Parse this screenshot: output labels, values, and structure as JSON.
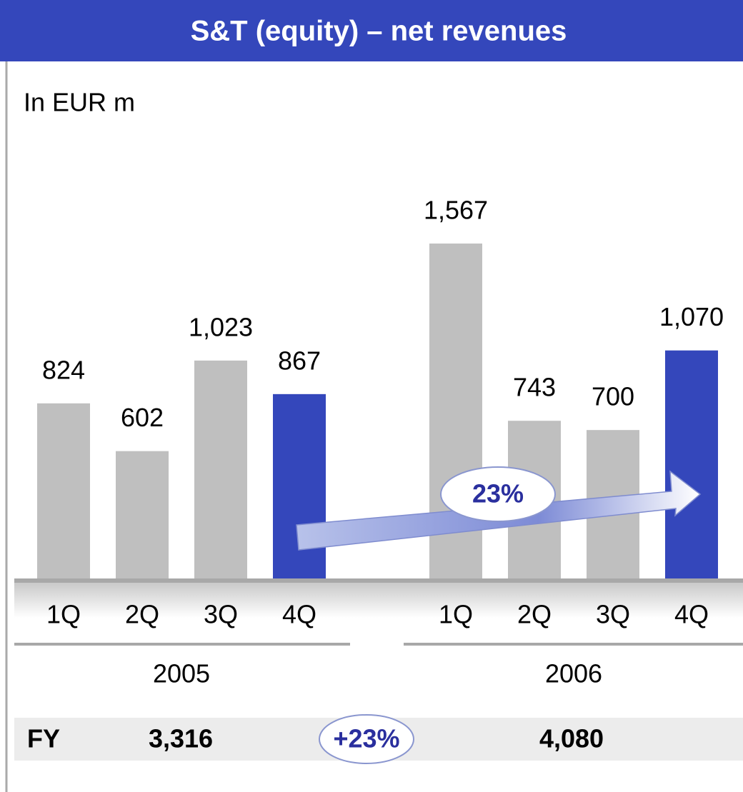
{
  "chart_data": {
    "type": "bar",
    "title": "S&T (equity) – net revenues",
    "subtitle": "In EUR m",
    "groups": [
      {
        "name": "2005",
        "categories": [
          "1Q",
          "2Q",
          "3Q",
          "4Q"
        ],
        "values": [
          824,
          602,
          1023,
          867
        ],
        "value_labels": [
          "824",
          "602",
          "1,023",
          "867"
        ],
        "colors": [
          "#bfbfbf",
          "#bfbfbf",
          "#bfbfbf",
          "#3447bb"
        ]
      },
      {
        "name": "2006",
        "categories": [
          "1Q",
          "2Q",
          "3Q",
          "4Q"
        ],
        "values": [
          1567,
          743,
          700,
          1070
        ],
        "value_labels": [
          "1,567",
          "743",
          "700",
          "1,070"
        ],
        "colors": [
          "#bfbfbf",
          "#bfbfbf",
          "#bfbfbf",
          "#3447bb"
        ]
      }
    ],
    "arrow_label": "23%",
    "fy": {
      "label": "FY",
      "values": [
        3316,
        4080
      ],
      "value_labels": [
        "3,316",
        "4,080"
      ],
      "growth": "+23%"
    }
  }
}
